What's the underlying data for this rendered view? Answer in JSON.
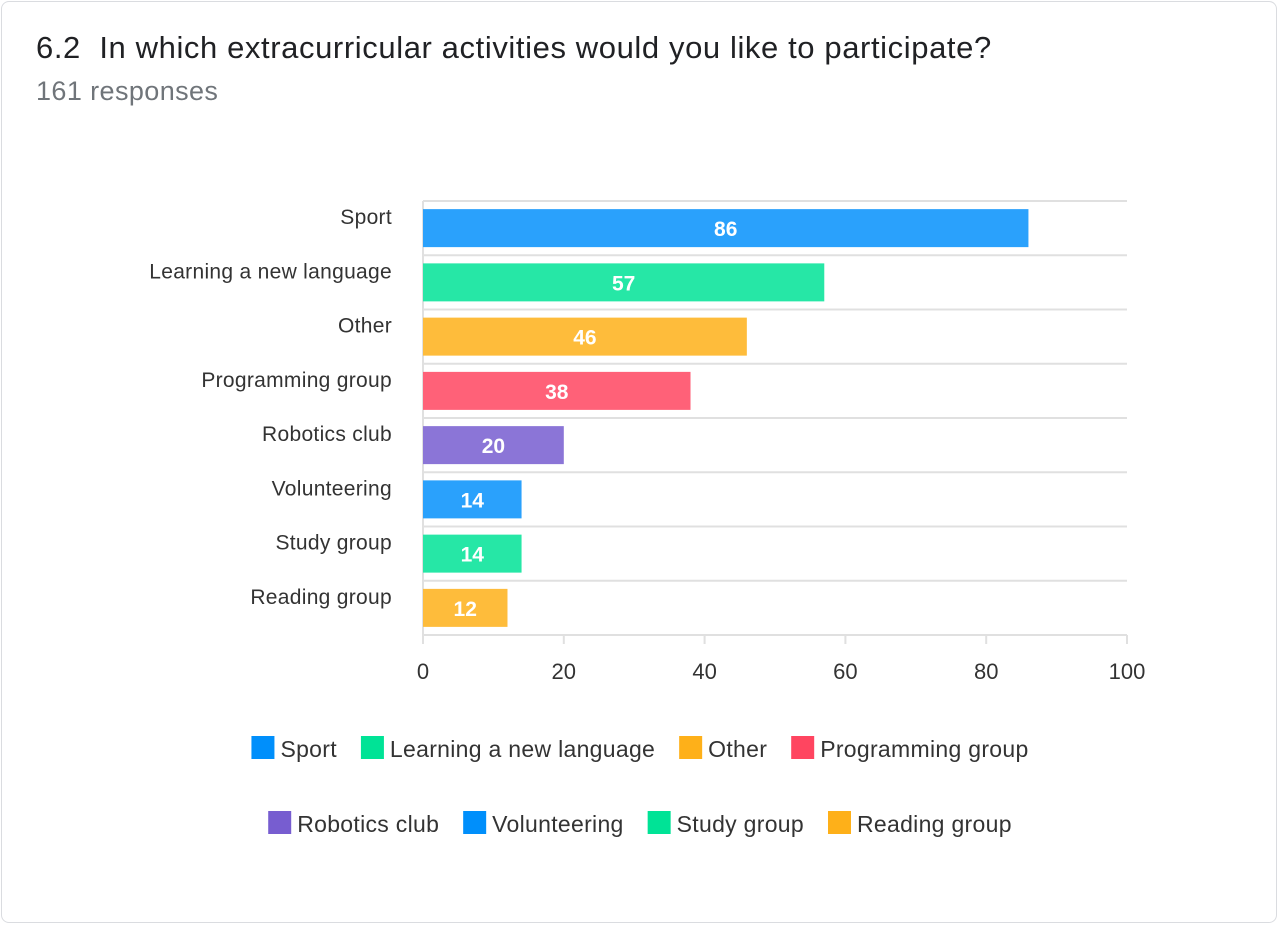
{
  "question": {
    "number": "6.2",
    "text": "In which extracurricular activities would you like to participate?",
    "responses": "161 responses"
  },
  "chart_data": {
    "type": "bar",
    "orientation": "horizontal",
    "categories": [
      "Sport",
      "Learning a new language",
      "Other",
      "Programming group",
      "Robotics club",
      "Volunteering",
      "Study group",
      "Reading group"
    ],
    "values": [
      86,
      57,
      46,
      38,
      20,
      14,
      14,
      12
    ],
    "xlim": [
      0,
      100
    ],
    "xticks": [
      0,
      20,
      40,
      60,
      80,
      100
    ],
    "grid": true,
    "legend_position": "bottom",
    "bar_colors": [
      "#2aa1fc",
      "#26e7a6",
      "#febc3b",
      "#ff6178",
      "#8b75d7",
      "#2aa1fc",
      "#26e7a6",
      "#febc3b"
    ],
    "legend_colors": [
      "#008ffb",
      "#00e396",
      "#feb019",
      "#ff4560",
      "#775dd0",
      "#008ffb",
      "#00e396",
      "#feb019"
    ]
  }
}
